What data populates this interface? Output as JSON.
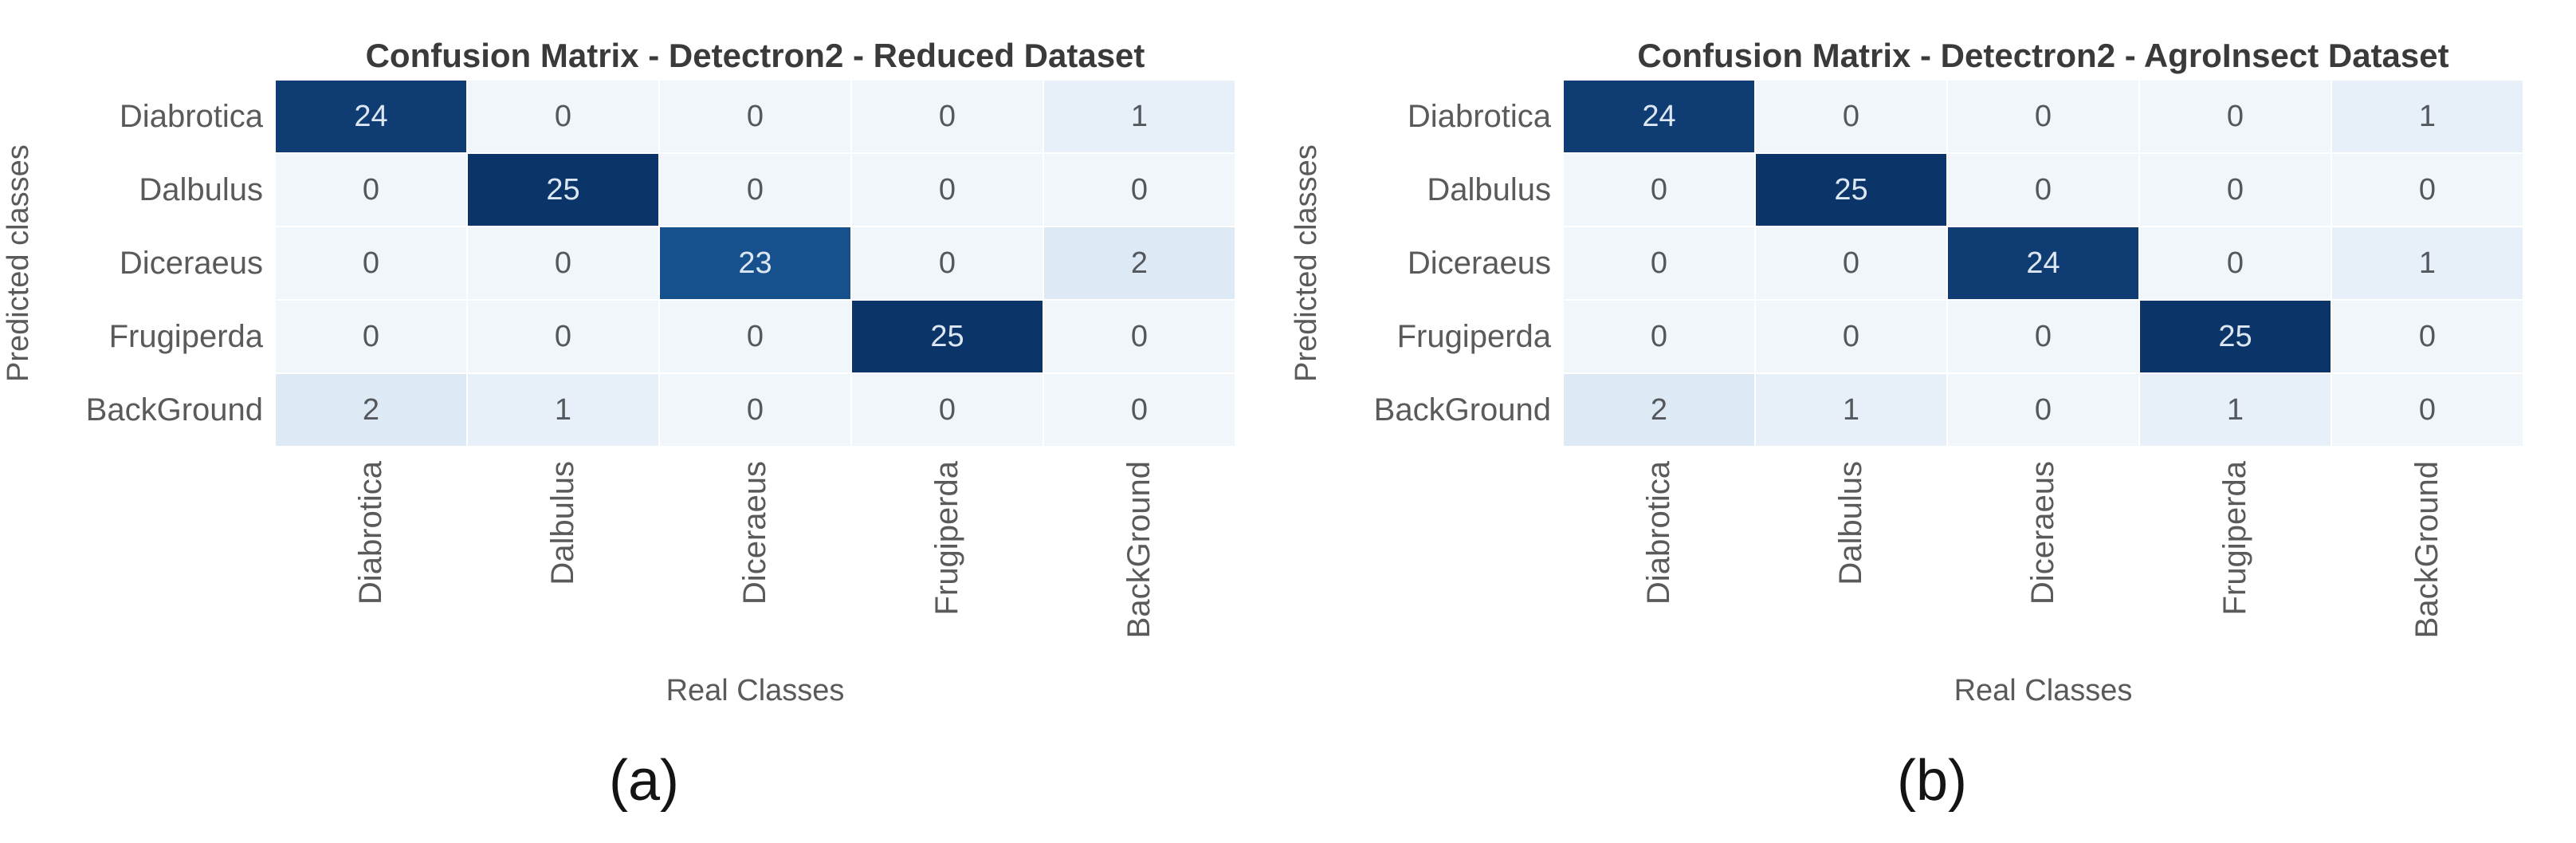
{
  "chart_data": [
    {
      "type": "heatmap",
      "title": "Confusion Matrix - Detectron2 - Reduced Dataset",
      "xlabel": "Real Classes",
      "ylabel": "Predicted classes",
      "caption": "(a)",
      "x_categories": [
        "Diabrotica",
        "Dalbulus",
        "Diceraeus",
        "Frugiperda",
        "BackGround"
      ],
      "y_categories": [
        "Diabrotica",
        "Dalbulus",
        "Diceraeus",
        "Frugiperda",
        "BackGround"
      ],
      "matrix": [
        [
          24,
          0,
          0,
          0,
          1
        ],
        [
          0,
          25,
          0,
          0,
          0
        ],
        [
          0,
          0,
          23,
          0,
          2
        ],
        [
          0,
          0,
          0,
          25,
          0
        ],
        [
          2,
          1,
          0,
          0,
          0
        ]
      ],
      "colormap": "Blues",
      "value_range": [
        0,
        25
      ],
      "legend": "none",
      "grid": "off"
    },
    {
      "type": "heatmap",
      "title": "Confusion Matrix - Detectron2 - AgroInsect Dataset",
      "xlabel": "Real Classes",
      "ylabel": "Predicted classes",
      "caption": "(b)",
      "x_categories": [
        "Diabrotica",
        "Dalbulus",
        "Diceraeus",
        "Frugiperda",
        "BackGround"
      ],
      "y_categories": [
        "Diabrotica",
        "Dalbulus",
        "Diceraeus",
        "Frugiperda",
        "BackGround"
      ],
      "matrix": [
        [
          24,
          0,
          0,
          0,
          1
        ],
        [
          0,
          25,
          0,
          0,
          0
        ],
        [
          0,
          0,
          24,
          0,
          1
        ],
        [
          0,
          0,
          0,
          25,
          0
        ],
        [
          2,
          1,
          0,
          1,
          0
        ]
      ],
      "colormap": "Blues",
      "value_range": [
        0,
        25
      ],
      "legend": "none",
      "grid": "off"
    }
  ],
  "style": {
    "cell_colors": {
      "0": "#f1f6fb",
      "1": "#e7f0f8",
      "2": "#ddeaf5",
      "23": "#16508d",
      "24": "#0e3c73",
      "25": "#0b3468"
    },
    "dark_value_threshold": 20,
    "dark_cell_text": "#dde7f2",
    "light_cell_text": "#54575b",
    "label_color": "#5a5a5a",
    "title_color": "#3a3a3a",
    "caption_color": "#141414",
    "background": "#ffffff"
  }
}
